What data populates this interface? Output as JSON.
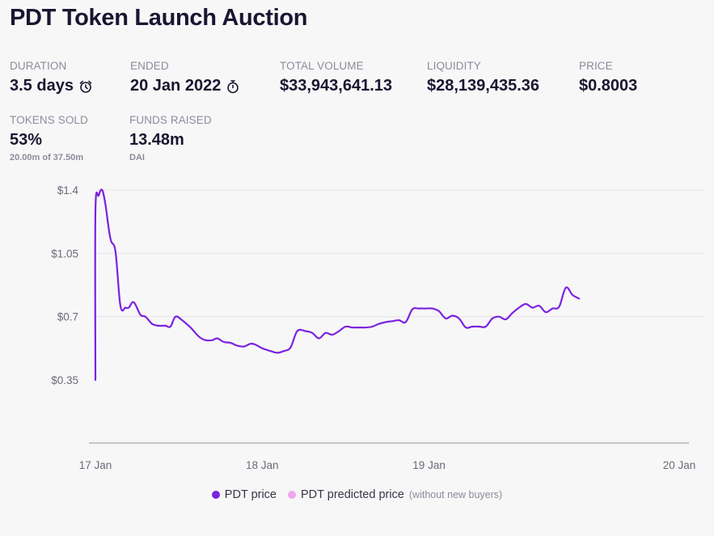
{
  "title": "PDT Token Launch Auction",
  "stats": {
    "duration": {
      "label": "DURATION",
      "value": "3.5 days",
      "icon": "alarm-clock-icon"
    },
    "ended": {
      "label": "ENDED",
      "value": "20 Jan 2022",
      "icon": "stopwatch-icon"
    },
    "total_volume": {
      "label": "TOTAL VOLUME",
      "value": "$33,943,641.13"
    },
    "liquidity": {
      "label": "LIQUIDITY",
      "value": "$28,139,435.36"
    },
    "price": {
      "label": "PRICE",
      "value": "$0.8003"
    },
    "tokens_sold": {
      "label": "TOKENS SOLD",
      "value": "53%",
      "sub": "20.00m of 37.50m"
    },
    "funds_raised": {
      "label": "FUNDS RAISED",
      "value": "13.48m",
      "sub": "DAI"
    }
  },
  "legend": {
    "pdt_price": "PDT price",
    "pdt_predicted": "PDT predicted price",
    "predicted_note": "(without new buyers)"
  },
  "colors": {
    "accent": "#7b22e0",
    "predicted": "#f1a7f0",
    "grid": "#e6e4ea",
    "axis": "#6e6878"
  },
  "chart_data": {
    "type": "line",
    "title": "",
    "xlabel": "",
    "ylabel": "",
    "ylim": [
      0.35,
      1.4
    ],
    "y_ticks": [
      1.4,
      1.05,
      0.7,
      0.35
    ],
    "y_tick_labels": [
      "$1.4",
      "$1.05",
      "$0.7",
      "$0.35"
    ],
    "x_ticks": [
      0,
      1,
      2,
      3.5
    ],
    "x_tick_labels": [
      "17 Jan",
      "18 Jan",
      "19 Jan",
      "20 Jan"
    ],
    "x_unit": "days since 17 Jan",
    "grid": true,
    "legend_position": "bottom",
    "series": [
      {
        "name": "PDT price",
        "points": [
          [
            0.0,
            0.35
          ],
          [
            0.0,
            1.28
          ],
          [
            0.02,
            1.37
          ],
          [
            0.04,
            1.4
          ],
          [
            0.06,
            1.32
          ],
          [
            0.09,
            1.13
          ],
          [
            0.12,
            1.06
          ],
          [
            0.15,
            0.76
          ],
          [
            0.18,
            0.75
          ],
          [
            0.2,
            0.75
          ],
          [
            0.23,
            0.78
          ],
          [
            0.27,
            0.71
          ],
          [
            0.3,
            0.7
          ],
          [
            0.34,
            0.66
          ],
          [
            0.38,
            0.65
          ],
          [
            0.42,
            0.65
          ],
          [
            0.45,
            0.645
          ],
          [
            0.48,
            0.7
          ],
          [
            0.52,
            0.68
          ],
          [
            0.57,
            0.64
          ],
          [
            0.62,
            0.59
          ],
          [
            0.66,
            0.57
          ],
          [
            0.7,
            0.57
          ],
          [
            0.73,
            0.58
          ],
          [
            0.77,
            0.56
          ],
          [
            0.81,
            0.555
          ],
          [
            0.85,
            0.54
          ],
          [
            0.89,
            0.535
          ],
          [
            0.93,
            0.55
          ],
          [
            0.96,
            0.545
          ],
          [
            1.0,
            0.525
          ],
          [
            1.05,
            0.51
          ],
          [
            1.09,
            0.5
          ],
          [
            1.13,
            0.51
          ],
          [
            1.17,
            0.53
          ],
          [
            1.21,
            0.62
          ],
          [
            1.26,
            0.62
          ],
          [
            1.3,
            0.61
          ],
          [
            1.34,
            0.58
          ],
          [
            1.38,
            0.61
          ],
          [
            1.42,
            0.6
          ],
          [
            1.46,
            0.62
          ],
          [
            1.5,
            0.645
          ],
          [
            1.54,
            0.64
          ],
          [
            1.58,
            0.64
          ],
          [
            1.62,
            0.64
          ],
          [
            1.66,
            0.645
          ],
          [
            1.7,
            0.66
          ],
          [
            1.74,
            0.67
          ],
          [
            1.78,
            0.675
          ],
          [
            1.82,
            0.68
          ],
          [
            1.86,
            0.67
          ],
          [
            1.9,
            0.74
          ],
          [
            1.94,
            0.745
          ],
          [
            1.98,
            0.745
          ],
          [
            2.02,
            0.745
          ],
          [
            2.06,
            0.73
          ],
          [
            2.1,
            0.69
          ],
          [
            2.14,
            0.705
          ],
          [
            2.18,
            0.69
          ],
          [
            2.22,
            0.64
          ],
          [
            2.26,
            0.645
          ],
          [
            2.3,
            0.645
          ],
          [
            2.34,
            0.645
          ],
          [
            2.38,
            0.69
          ],
          [
            2.42,
            0.7
          ],
          [
            2.46,
            0.685
          ],
          [
            2.5,
            0.72
          ],
          [
            2.54,
            0.75
          ],
          [
            2.58,
            0.77
          ],
          [
            2.62,
            0.75
          ],
          [
            2.66,
            0.76
          ],
          [
            2.7,
            0.725
          ],
          [
            2.74,
            0.745
          ],
          [
            2.78,
            0.755
          ],
          [
            2.82,
            0.86
          ],
          [
            2.86,
            0.82
          ],
          [
            2.9,
            0.8
          ]
        ]
      }
    ]
  }
}
